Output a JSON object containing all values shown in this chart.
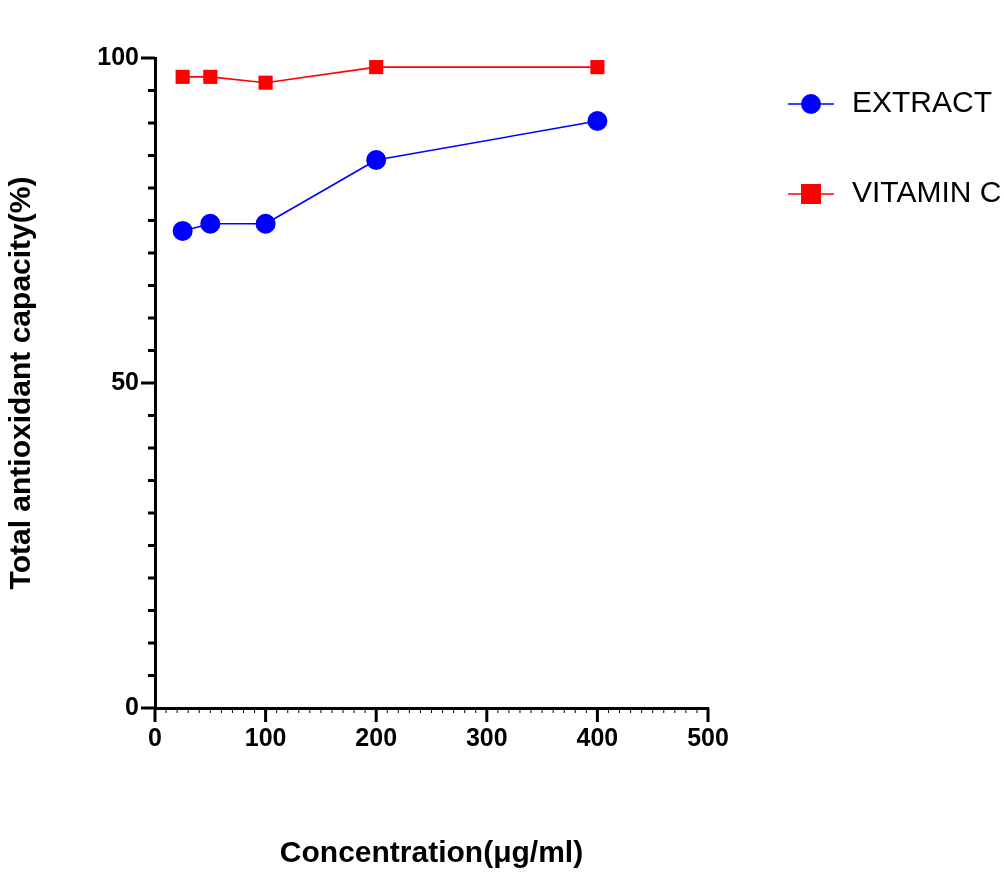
{
  "chart_data": {
    "type": "line",
    "xlabel": "Concentration(μg/ml)",
    "ylabel": "Total antioxidant capacity(%)",
    "xlim": [
      0,
      500
    ],
    "ylim": [
      0,
      100
    ],
    "xticks": [
      0,
      {
        "value": 10,
        "label": null
      },
      {
        "value": 20,
        "label": null
      },
      {
        "value": 30,
        "label": null
      },
      {
        "value": 40,
        "label": null
      },
      {
        "value": 50,
        "label": null
      },
      {
        "value": 60,
        "label": null
      },
      {
        "value": 70,
        "label": null
      },
      {
        "value": 80,
        "label": null
      },
      {
        "value": 90,
        "label": null
      },
      100,
      {
        "value": 110,
        "label": null
      },
      {
        "value": 120,
        "label": null
      },
      {
        "value": 130,
        "label": null
      },
      {
        "value": 140,
        "label": null
      },
      {
        "value": 150,
        "label": null
      },
      {
        "value": 160,
        "label": null
      },
      {
        "value": 170,
        "label": null
      },
      {
        "value": 180,
        "label": null
      },
      {
        "value": 190,
        "label": null
      },
      200,
      {
        "value": 210,
        "label": null
      },
      {
        "value": 220,
        "label": null
      },
      {
        "value": 230,
        "label": null
      },
      {
        "value": 240,
        "label": null
      },
      {
        "value": 250,
        "label": null
      },
      {
        "value": 260,
        "label": null
      },
      {
        "value": 270,
        "label": null
      },
      {
        "value": 280,
        "label": null
      },
      {
        "value": 290,
        "label": null
      },
      300,
      {
        "value": 310,
        "label": null
      },
      {
        "value": 320,
        "label": null
      },
      {
        "value": 330,
        "label": null
      },
      {
        "value": 340,
        "label": null
      },
      {
        "value": 350,
        "label": null
      },
      {
        "value": 360,
        "label": null
      },
      {
        "value": 370,
        "label": null
      },
      {
        "value": 380,
        "label": null
      },
      {
        "value": 390,
        "label": null
      },
      400,
      {
        "value": 410,
        "label": null
      },
      {
        "value": 420,
        "label": null
      },
      {
        "value": 430,
        "label": null
      },
      {
        "value": 440,
        "label": null
      },
      {
        "value": 450,
        "label": null
      },
      {
        "value": 460,
        "label": null
      },
      {
        "value": 470,
        "label": null
      },
      {
        "value": 480,
        "label": null
      },
      {
        "value": 490,
        "label": null
      },
      500
    ],
    "yticks": [
      0,
      {
        "value": 5,
        "label": null
      },
      {
        "value": 10,
        "label": null
      },
      {
        "value": 15,
        "label": null
      },
      {
        "value": 20,
        "label": null
      },
      {
        "value": 25,
        "label": null
      },
      {
        "value": 30,
        "label": null
      },
      {
        "value": 35,
        "label": null
      },
      {
        "value": 40,
        "label": null
      },
      {
        "value": 45,
        "label": null
      },
      50,
      {
        "value": 55,
        "label": null
      },
      {
        "value": 60,
        "label": null
      },
      {
        "value": 65,
        "label": null
      },
      {
        "value": 70,
        "label": null
      },
      {
        "value": 75,
        "label": null
      },
      {
        "value": 80,
        "label": null
      },
      {
        "value": 85,
        "label": null
      },
      {
        "value": 90,
        "label": null
      },
      {
        "value": 95,
        "label": null
      },
      100
    ],
    "x": [
      25,
      50,
      100,
      200,
      400
    ],
    "series": [
      {
        "name": "EXTRACT",
        "color": "#0000ff",
        "marker": "circle",
        "values": [
          73.4,
          74.5,
          74.5,
          84.3,
          90.3
        ]
      },
      {
        "name": "VITAMIN C",
        "color": "#ff0000",
        "marker": "square",
        "values": [
          97.1,
          97.1,
          96.2,
          98.6,
          98.6
        ]
      }
    ],
    "legend": "top right",
    "grid": false,
    "line_style": "solid"
  }
}
